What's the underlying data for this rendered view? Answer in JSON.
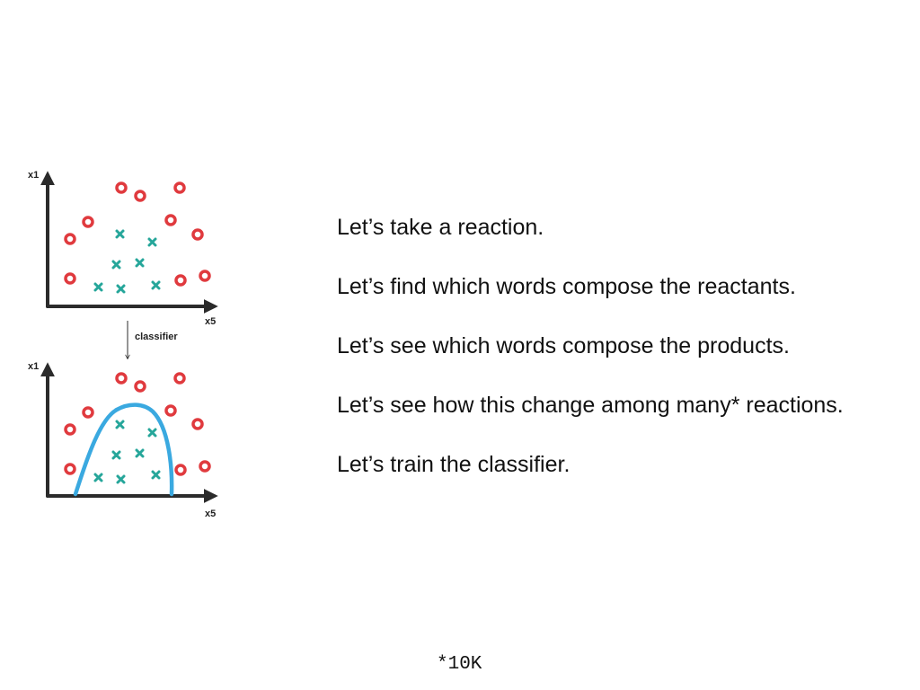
{
  "diagram": {
    "top_plot": {
      "y_axis_label": "x1",
      "x_axis_label": "x5"
    },
    "arrow_label": "classifier",
    "bottom_plot": {
      "y_axis_label": "x1",
      "x_axis_label": "x5"
    },
    "colors": {
      "axes": "#2b2b2b",
      "circle_class": "#e03a3e",
      "cross_class": "#26a69a",
      "decision_boundary": "#3aa9e0"
    }
  },
  "bullets": [
    "Let’s take a reaction.",
    "Let’s find which words compose the reactants.",
    "Let’s see which words compose the products.",
    "Let’s see how this change among many* reactions.",
    "Let’s train the classifier."
  ],
  "footnote": "*10K"
}
